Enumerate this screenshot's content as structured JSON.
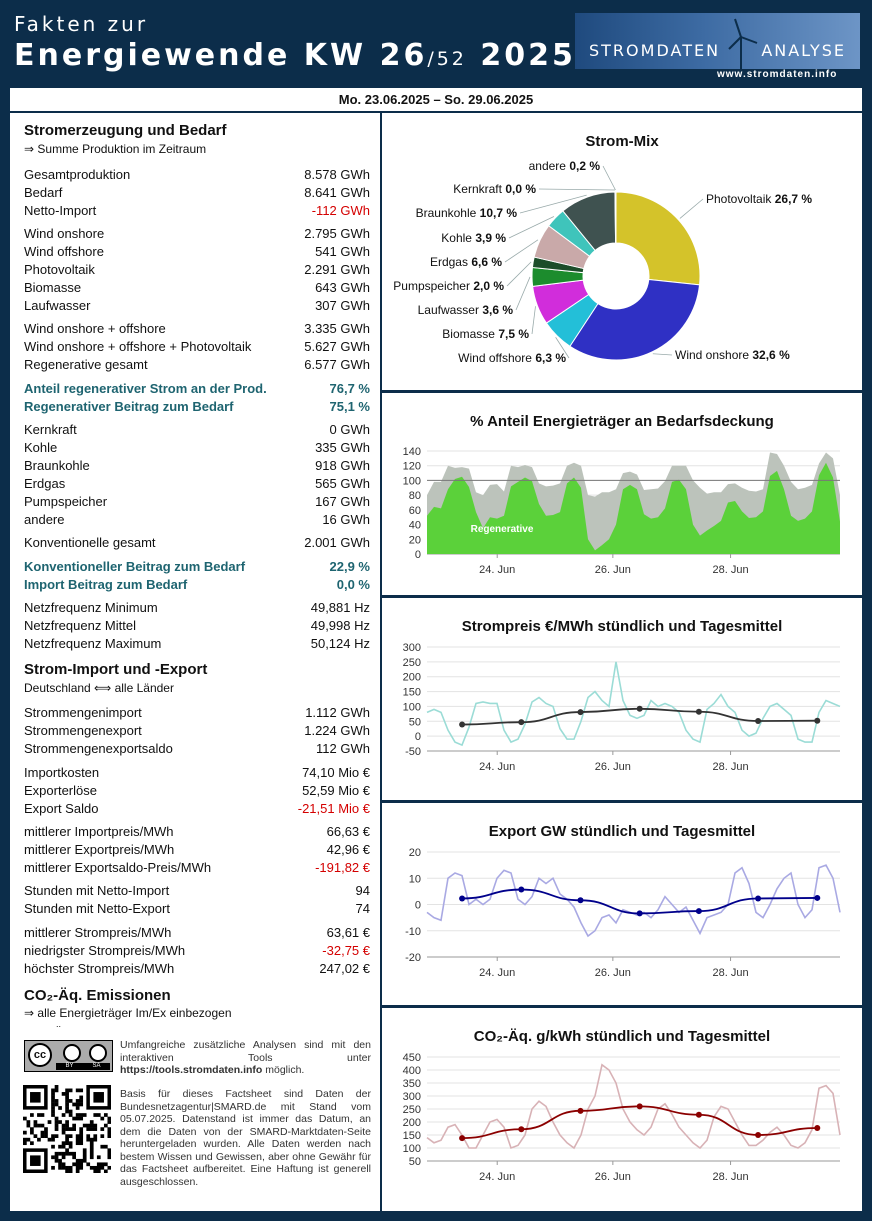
{
  "header": {
    "line1": "Fakten zur",
    "line2_a": "Energiewende  KW 26",
    "line2_b": "/52",
    "line2_c": " 2025",
    "brand_left": "STROMDATEN",
    "brand_right": "ANALYSE",
    "url": "www.stromdaten.info"
  },
  "dates": "Mo. 23.06.2025 – So. 29.06.2025",
  "s1": {
    "title": "Stromerzeugung und Bedarf",
    "subtitle": "⇒ Summe Produktion im Zeitraum",
    "rows": [
      {
        "l": "Gesamtproduktion",
        "v": "8.578 GWh"
      },
      {
        "l": "Bedarf",
        "v": "8.641 GWh"
      },
      {
        "l": "Netto-Import",
        "v": "-112 GWh"
      },
      {
        "l": "Wind onshore",
        "v": "2.795 GWh"
      },
      {
        "l": "Wind offshore",
        "v": "541 GWh"
      },
      {
        "l": "Photovoltaik",
        "v": "2.291 GWh"
      },
      {
        "l": "Biomasse",
        "v": "643 GWh"
      },
      {
        "l": "Laufwasser",
        "v": "307 GWh"
      },
      {
        "l": "Wind onshore + offshore",
        "v": "3.335 GWh"
      },
      {
        "l": "Wind onshore + offshore + Photovoltaik",
        "v": "5.627 GWh"
      },
      {
        "l": "Regenerative gesamt",
        "v": "6.577 GWh"
      },
      {
        "l": "Anteil regenerativer Strom an der Prod.",
        "v": "76,7 %"
      },
      {
        "l": "Regenerativer Beitrag zum Bedarf",
        "v": "75,1 %"
      },
      {
        "l": "Kernkraft",
        "v": "0 GWh"
      },
      {
        "l": "Kohle",
        "v": "335 GWh"
      },
      {
        "l": "Braunkohle",
        "v": "918 GWh"
      },
      {
        "l": "Erdgas",
        "v": "565 GWh"
      },
      {
        "l": "Pumpspeicher",
        "v": "167 GWh"
      },
      {
        "l": "andere",
        "v": "16 GWh"
      },
      {
        "l": "Konventionelle gesamt",
        "v": "2.001 GWh"
      },
      {
        "l": "Konventioneller Beitrag zum Bedarf",
        "v": "22,9 %"
      },
      {
        "l": "Import Beitrag zum Bedarf",
        "v": "0,0 %"
      },
      {
        "l": "Netzfrequenz Minimum",
        "v": "49,881 Hz"
      },
      {
        "l": "Netzfrequenz Mittel",
        "v": "49,998 Hz"
      },
      {
        "l": "Netzfrequenz Maximum",
        "v": "50,124 Hz"
      }
    ]
  },
  "s2": {
    "title": "Strom-Import und -Export",
    "subtitle": "Deutschland ⟺ alle Länder",
    "rows": [
      {
        "l": "Strommengenimport",
        "v": "1.112 GWh"
      },
      {
        "l": "Strommengenexport",
        "v": "1.224 GWh"
      },
      {
        "l": "Strommengenexportsaldo",
        "v": "112 GWh"
      },
      {
        "l": "Importkosten",
        "v": "74,10 Mio €"
      },
      {
        "l": "Exporterlöse",
        "v": "52,59 Mio €"
      },
      {
        "l": "Export Saldo",
        "v": "-21,51 Mio €"
      },
      {
        "l": "mittlerer Importpreis/MWh",
        "v": "66,63 €"
      },
      {
        "l": "mittlerer Exportpreis/MWh",
        "v": "42,96 €"
      },
      {
        "l": "mittlerer Exportsaldo-Preis/MWh",
        "v": "-191,82 €"
      },
      {
        "l": "Stunden mit Netto-Import",
        "v": "94"
      },
      {
        "l": "Stunden mit Netto-Export",
        "v": "74"
      },
      {
        "l": "mittlerer Strompreis/MWh",
        "v": "63,61 €"
      },
      {
        "l": "niedrigster Strompreis/MWh",
        "v": "-32,75 €"
      },
      {
        "l": "höchster Strompreis/MWh",
        "v": "247,02 €"
      }
    ]
  },
  "s3": {
    "title": "CO₂-Äq. Emissionen",
    "subtitle": "⇒ alle Energieträger Im/Ex einbezogen",
    "dots": ".."
  },
  "footer": {
    "cc": "cc",
    "by": "BY",
    "sa": "SA",
    "p1a": "Umfangreiche zusätzliche Analysen sind mit den interaktiven Tools unter ",
    "p1link": "https://tools.stromdaten.info",
    "p1b": " möglich.",
    "p2": "Basis für dieses Factsheet sind Daten der Bundesnetzagentur|SMARD.de mit Stand vom 05.07.2025. Datenstand ist immer das Datum, an dem die Daten von der SMARD-Marktdaten-Seite heruntergeladen wurden. Alle Daten werden nach bestem Wissen und Gewissen, aber ohne Gewähr für das Factsheet aufbereitet. Eine Haftung ist generell ausgeschlossen."
  },
  "colors": {
    "navy": "#0c2d4a",
    "teal": "#1e6470",
    "red": "#d40000",
    "green": "#5bd13a",
    "gray": "#bcc3bb"
  },
  "chart_data": [
    {
      "type": "pie",
      "title": "Strom-Mix",
      "slices": [
        {
          "label": "Photovoltaik",
          "pct": "26,7 %",
          "value": 26.7,
          "color": "#d4c32a"
        },
        {
          "label": "Wind onshore",
          "pct": "32,6 %",
          "value": 32.6,
          "color": "#2f30c4"
        },
        {
          "label": "Wind offshore",
          "pct": "6,3 %",
          "value": 6.3,
          "color": "#23bfd8"
        },
        {
          "label": "Biomasse",
          "pct": "7,5 %",
          "value": 7.5,
          "color": "#d12ddb"
        },
        {
          "label": "Laufwasser",
          "pct": "3,6 %",
          "value": 3.6,
          "color": "#1c8c2d"
        },
        {
          "label": "Pumpspeicher",
          "pct": "2,0 %",
          "value": 2.0,
          "color": "#1c4d2a"
        },
        {
          "label": "Erdgas",
          "pct": "6,6 %",
          "value": 6.6,
          "color": "#c9a9a9"
        },
        {
          "label": "Kohle",
          "pct": "3,9 %",
          "value": 3.9,
          "color": "#3fc4bb"
        },
        {
          "label": "Braunkohle",
          "pct": "10,7 %",
          "value": 10.7,
          "color": "#3f5250"
        },
        {
          "label": "Kernkraft",
          "pct": "0,0 %",
          "value": 0.0,
          "color": "#888888"
        },
        {
          "label": "andere",
          "pct": "0,2 %",
          "value": 0.2,
          "color": "#9b5a3c"
        }
      ]
    },
    {
      "type": "area",
      "title": "% Anteil Energieträger an Bedarfsdeckung",
      "yticks": [
        "140",
        "120",
        "100",
        "80",
        "60",
        "40",
        "20",
        "0"
      ],
      "ylim": [
        0,
        140
      ],
      "xticks": [
        "24. Jun",
        "26. Jun",
        "28. Jun"
      ],
      "series_label": "Regenerative",
      "series": [
        {
          "name": "total",
          "values": [
            80,
            98,
            98,
            120,
            117,
            118,
            116,
            84,
            80,
            94,
            95,
            85,
            120,
            118,
            121,
            118,
            96,
            92,
            93,
            96,
            120,
            124,
            120,
            80,
            78,
            84,
            84,
            88,
            110,
            112,
            108,
            87,
            88,
            89,
            99,
            120,
            120,
            120,
            100,
            90,
            82,
            84,
            84,
            95,
            96,
            90,
            86,
            85,
            88,
            138,
            136,
            120,
            98,
            88,
            90,
            94,
            123,
            138,
            130,
            80
          ]
        },
        {
          "name": "regenerative",
          "values": [
            52,
            64,
            62,
            88,
            102,
            105,
            91,
            57,
            35,
            50,
            48,
            52,
            92,
            98,
            104,
            99,
            68,
            52,
            53,
            57,
            96,
            104,
            90,
            20,
            5,
            12,
            20,
            40,
            88,
            94,
            88,
            54,
            48,
            50,
            62,
            98,
            101,
            88,
            40,
            25,
            32,
            38,
            45,
            70,
            72,
            58,
            49,
            50,
            58,
            106,
            113,
            88,
            52,
            45,
            48,
            58,
            107,
            124,
            104,
            44
          ]
        }
      ]
    },
    {
      "type": "line",
      "title": "Strompreis €/MWh stündlich und Tagesmittel",
      "yticks": [
        "300",
        "250",
        "200",
        "150",
        "100",
        "50",
        "0",
        "-50"
      ],
      "ylim": [
        -50,
        300
      ],
      "xticks": [
        "24. Jun",
        "26. Jun",
        "28. Jun"
      ],
      "series": [
        {
          "name": "hourly",
          "values": [
            80,
            90,
            80,
            20,
            -20,
            -30,
            30,
            110,
            115,
            110,
            110,
            20,
            -20,
            -10,
            40,
            115,
            130,
            110,
            100,
            25,
            -10,
            -10,
            50,
            130,
            150,
            120,
            100,
            250,
            120,
            70,
            60,
            70,
            120,
            100,
            110,
            100,
            80,
            20,
            -10,
            -20,
            90,
            110,
            140,
            100,
            80,
            20,
            0,
            10,
            60,
            100,
            110,
            90,
            70,
            -10,
            -20,
            -20,
            80,
            120,
            110,
            100
          ]
        },
        {
          "name": "daily",
          "values": [
            39,
            47,
            81,
            92,
            82,
            51,
            52
          ]
        }
      ]
    },
    {
      "type": "line",
      "title": "Export GW stündlich und Tagesmittel",
      "yticks": [
        "20",
        "10",
        "0",
        "-10",
        "-20"
      ],
      "ylim": [
        -20,
        20
      ],
      "xticks": [
        "24. Jun",
        "26. Jun",
        "28. Jun"
      ],
      "series": [
        {
          "name": "hourly",
          "values": [
            -3,
            -5,
            -6,
            10,
            12,
            11,
            0,
            2,
            0,
            2,
            10,
            13,
            12,
            2,
            0,
            3,
            10,
            8,
            10,
            4,
            2,
            -1,
            -7,
            -12,
            -10,
            -5,
            -4,
            -7,
            -2,
            -3,
            -4,
            -3,
            -5,
            -2,
            3,
            0,
            -3,
            -1,
            -6,
            -11,
            -5,
            -4,
            -3,
            0,
            12,
            14,
            8,
            -3,
            -5,
            0,
            6,
            10,
            12,
            0,
            -5,
            -2,
            14,
            15,
            10,
            -3
          ]
        },
        {
          "name": "daily",
          "values": [
            2.3,
            5.7,
            1.6,
            -3.4,
            -2.5,
            2.3,
            2.5
          ]
        }
      ]
    },
    {
      "type": "line",
      "title": "CO₂-Äq. g/kWh stündlich und Tagesmittel",
      "yticks": [
        "450",
        "400",
        "350",
        "300",
        "250",
        "200",
        "150",
        "100",
        "50"
      ],
      "ylim": [
        50,
        450
      ],
      "xticks": [
        "24. Jun",
        "26. Jun",
        "28. Jun"
      ],
      "series": [
        {
          "name": "hourly",
          "values": [
            140,
            120,
            130,
            180,
            190,
            150,
            100,
            100,
            150,
            200,
            210,
            180,
            100,
            110,
            150,
            250,
            280,
            260,
            200,
            150,
            120,
            100,
            150,
            250,
            300,
            420,
            400,
            350,
            250,
            200,
            170,
            150,
            180,
            250,
            270,
            230,
            180,
            150,
            120,
            100,
            130,
            220,
            260,
            250,
            200,
            150,
            110,
            110,
            130,
            160,
            180,
            150,
            110,
            100,
            120,
            170,
            330,
            340,
            310,
            150
          ]
        },
        {
          "name": "daily",
          "values": [
            138,
            172,
            243,
            260,
            228,
            150,
            177
          ]
        }
      ]
    }
  ]
}
